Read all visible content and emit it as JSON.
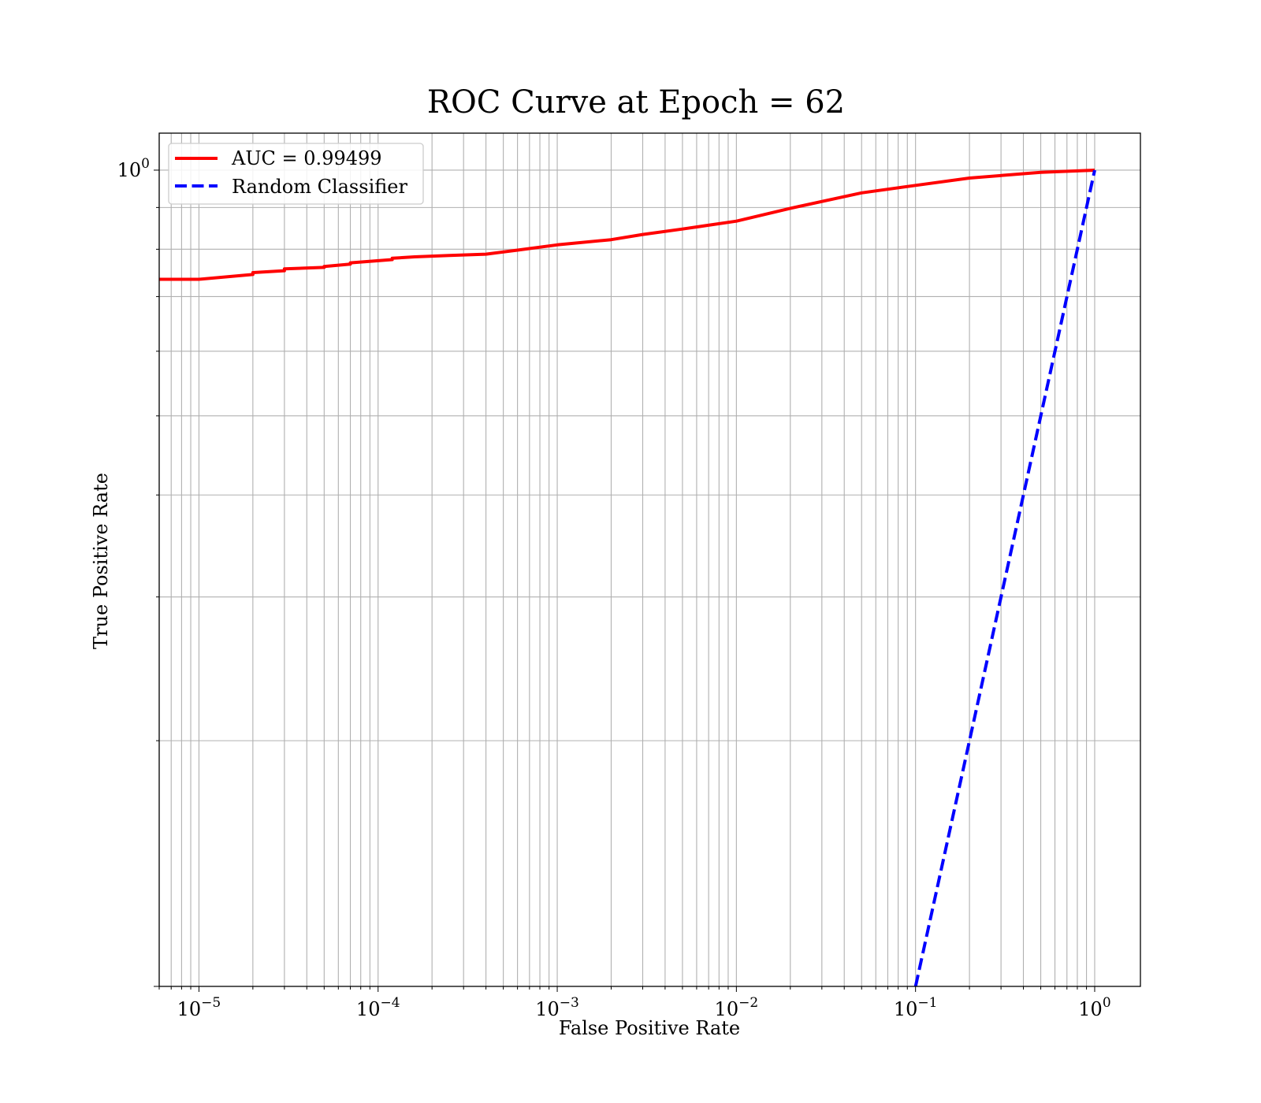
{
  "chart_data": {
    "type": "line",
    "title": "ROC Curve at Epoch = 62",
    "xlabel": "False Positive Rate",
    "ylabel": "True Positive Rate",
    "xscale": "log",
    "yscale": "log",
    "xlim": [
      6e-06,
      1.8
    ],
    "ylim": [
      0.1,
      1.11
    ],
    "grid": {
      "major": true,
      "minor": true
    },
    "legend_position": "upper-left",
    "x_ticks": [
      {
        "value": 1e-05,
        "base": "10",
        "exp": "−5"
      },
      {
        "value": 0.0001,
        "base": "10",
        "exp": "−4"
      },
      {
        "value": 0.001,
        "base": "10",
        "exp": "−3"
      },
      {
        "value": 0.01,
        "base": "10",
        "exp": "−2"
      },
      {
        "value": 0.1,
        "base": "10",
        "exp": "−1"
      },
      {
        "value": 1,
        "base": "10",
        "exp": "0"
      }
    ],
    "y_ticks": [
      {
        "value": 1,
        "base": "10",
        "exp": "0"
      }
    ],
    "series": [
      {
        "name": "AUC = 0.99499",
        "color": "#ff0000",
        "dash": "solid",
        "x": [
          6e-06,
          1e-05,
          2e-05,
          2e-05,
          3e-05,
          3e-05,
          5e-05,
          5e-05,
          7e-05,
          7e-05,
          0.00012,
          0.00012,
          0.00016,
          0.00025,
          0.0004,
          0.0006,
          0.001,
          0.002,
          0.003,
          0.005,
          0.01,
          0.02,
          0.05,
          0.1,
          0.2,
          0.5,
          1.0
        ],
        "y": [
          0.735,
          0.735,
          0.745,
          0.749,
          0.753,
          0.757,
          0.76,
          0.762,
          0.767,
          0.77,
          0.777,
          0.78,
          0.783,
          0.786,
          0.789,
          0.798,
          0.81,
          0.822,
          0.834,
          0.847,
          0.866,
          0.898,
          0.938,
          0.958,
          0.978,
          0.994,
          1.0
        ]
      },
      {
        "name": "Random Classifier",
        "color": "#0000ff",
        "dash": "dashed",
        "x": [
          0.1,
          1.0
        ],
        "y": [
          0.1,
          1.0
        ]
      }
    ]
  }
}
